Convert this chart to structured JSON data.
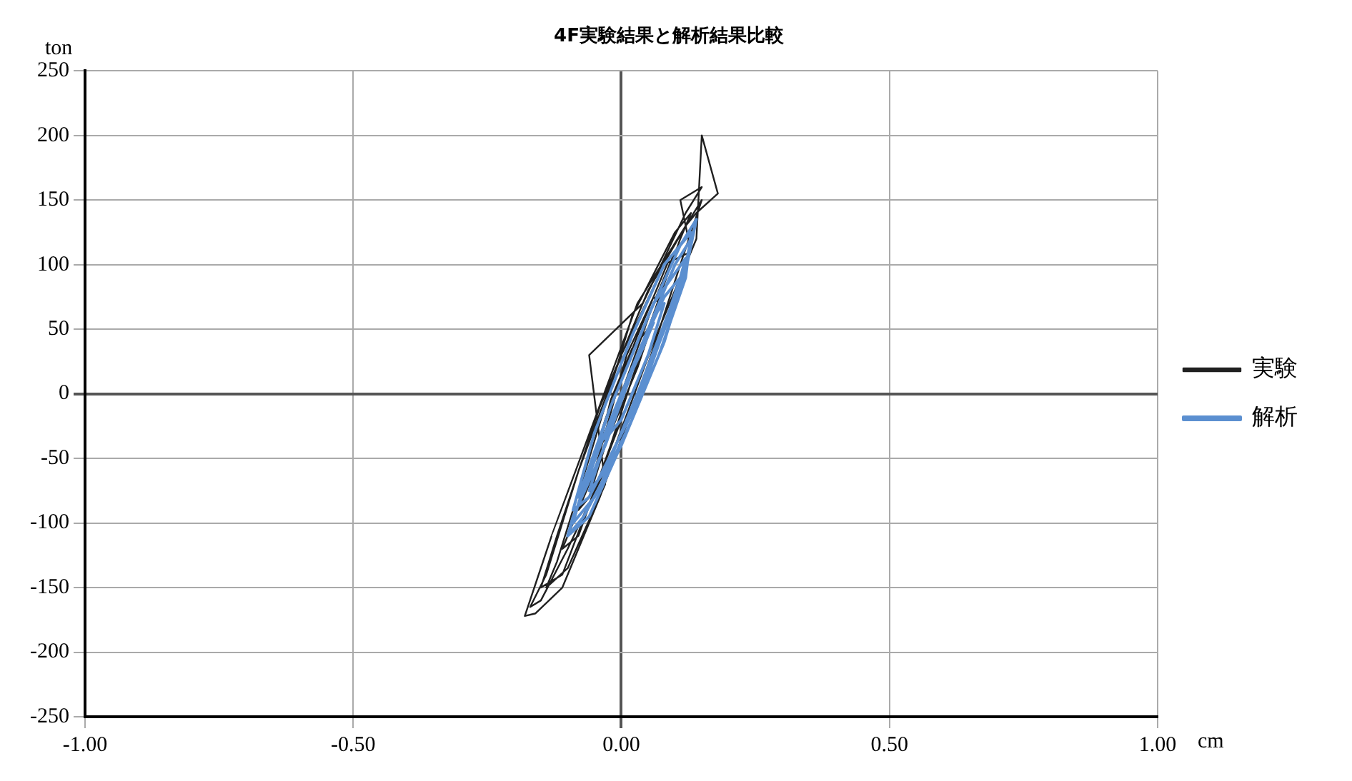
{
  "chart_data": {
    "type": "line",
    "title": "4F実験結果と解析結果比較",
    "xlabel": "cm",
    "ylabel": "ton",
    "xlim": [
      -1,
      1
    ],
    "xticks": [
      {
        "value": -1,
        "label": "-1.00"
      },
      {
        "value": -0.5,
        "label": "-0.50"
      },
      {
        "value": 0,
        "label": "0.00"
      },
      {
        "value": 0.5,
        "label": "0.50"
      },
      {
        "value": 1,
        "label": "1.00"
      }
    ],
    "ylim": [
      -250,
      250
    ],
    "yticks": [
      -250,
      -200,
      -150,
      -100,
      -50,
      0,
      50,
      100,
      150,
      200,
      250
    ],
    "grid": true,
    "legend": "right",
    "marker": "none",
    "line_style": "solid",
    "series": [
      {
        "name": "実験",
        "color": "#202020",
        "x": [
          0,
          0.03,
          0.05,
          0.02,
          -0.02,
          -0.04,
          -0.02,
          0.03,
          0.07,
          0.06,
          0.01,
          -0.05,
          -0.08,
          -0.06,
          0.0,
          0.06,
          0.1,
          0.09,
          0.03,
          -0.03,
          -0.09,
          -0.11,
          -0.08,
          -0.02,
          0.05,
          0.11,
          0.13,
          0.1,
          0.02,
          -0.06,
          -0.12,
          -0.14,
          -0.1,
          -0.03,
          -0.06,
          0.04,
          0.12,
          0.15,
          0.11,
          0.13,
          0.08,
          0.0,
          -0.08,
          -0.14,
          -0.17,
          -0.15,
          -0.1,
          -0.02,
          0.06,
          0.1,
          0.14,
          0.15,
          0.18,
          0.14,
          0.12,
          0.03,
          -0.05,
          -0.13,
          -0.18,
          -0.16,
          -0.11,
          -0.04,
          0.04,
          0.11,
          0.15,
          0.12,
          0.05,
          -0.04,
          -0.12,
          -0.15,
          -0.11,
          0
        ],
        "values": [
          0,
          30,
          50,
          35,
          -5,
          -40,
          -30,
          20,
          70,
          75,
          30,
          -60,
          -90,
          -80,
          0,
          70,
          110,
          105,
          45,
          -20,
          -100,
          -120,
          -110,
          -40,
          50,
          120,
          140,
          125,
          60,
          -50,
          -130,
          -150,
          -135,
          -70,
          30,
          70,
          140,
          160,
          150,
          110,
          100,
          30,
          -60,
          -140,
          -165,
          -160,
          -120,
          -50,
          40,
          80,
          120,
          200,
          155,
          140,
          130,
          70,
          -20,
          -110,
          -172,
          -170,
          -150,
          -80,
          10,
          100,
          150,
          130,
          80,
          -10,
          -110,
          -150,
          -140,
          -20
        ]
      },
      {
        "name": "解析",
        "color": "#5b8fd0",
        "x": [
          0,
          0.04,
          0.06,
          0.03,
          -0.01,
          -0.03,
          0.0,
          0.05,
          0.08,
          0.06,
          0.02,
          -0.04,
          -0.06,
          -0.03,
          0.03,
          0.09,
          0.11,
          0.08,
          0.03,
          -0.03,
          -0.08,
          -0.09,
          -0.05,
          0.02,
          0.08,
          0.12,
          0.13,
          0.1,
          0.04,
          -0.03,
          -0.09,
          -0.1,
          -0.06,
          0.01,
          0.08,
          0.12,
          0.14,
          0.11,
          0.05,
          -0.02,
          -0.08,
          -0.1,
          -0.07,
          0.0,
          0.07,
          0.12,
          0.13,
          0.08,
          0.02,
          -0.05,
          -0.09,
          -0.06,
          0.02,
          0.09,
          0.12,
          0.06,
          -0.02,
          -0.08,
          -0.03
        ],
        "values": [
          0,
          35,
          55,
          30,
          -10,
          -35,
          -20,
          30,
          70,
          60,
          20,
          -50,
          -75,
          -60,
          0,
          65,
          90,
          75,
          30,
          -30,
          -85,
          -100,
          -80,
          -20,
          50,
          100,
          120,
          100,
          40,
          -40,
          -95,
          -110,
          -95,
          -30,
          40,
          95,
          135,
          115,
          60,
          -10,
          -85,
          -110,
          -95,
          -40,
          30,
          90,
          125,
          100,
          45,
          -30,
          -90,
          -80,
          -15,
          60,
          105,
          70,
          -10,
          -80,
          -30
        ]
      }
    ]
  }
}
